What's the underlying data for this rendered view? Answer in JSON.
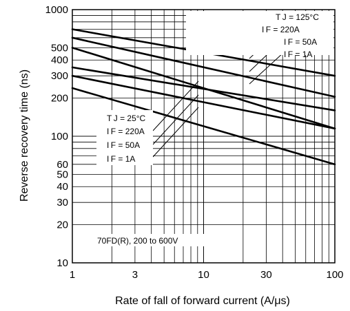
{
  "chart_data": {
    "type": "line",
    "xlabel": "Rate of fall of forward current (A/μs)",
    "ylabel": "Reverse recovery time (ns)",
    "x_scale": "log",
    "y_scale": "log",
    "xlim": [
      1,
      100
    ],
    "ylim": [
      10,
      1000
    ],
    "grid": true,
    "x_ticks": [
      "1",
      "3",
      "10",
      "30",
      "100"
    ],
    "y_ticks": [
      "10",
      "20",
      "30",
      "40",
      "50",
      "60",
      "100",
      "200",
      "300",
      "400",
      "500",
      "1000"
    ],
    "legend_125": {
      "temp": "T J = 125°C",
      "labels": [
        "I F = 220A",
        "I F = 50A",
        "I F = 1A"
      ]
    },
    "legend_25": {
      "temp": "T J = 25°C",
      "labels": [
        "I F = 220A",
        "I F = 50A",
        "I F = 1A"
      ]
    },
    "note": "70FD(R), 200 to 600V",
    "series": [
      {
        "x": [
          1,
          100
        ],
        "y": [
          700,
          300
        ]
      },
      {
        "x": [
          1,
          100
        ],
        "y": [
          600,
          205
        ]
      },
      {
        "x": [
          1,
          100
        ],
        "y": [
          500,
          115
        ]
      },
      {
        "x": [
          1,
          100
        ],
        "y": [
          350,
          160
        ]
      },
      {
        "x": [
          1,
          100
        ],
        "y": [
          300,
          115
        ]
      },
      {
        "x": [
          1,
          100
        ],
        "y": [
          240,
          60
        ]
      }
    ]
  }
}
